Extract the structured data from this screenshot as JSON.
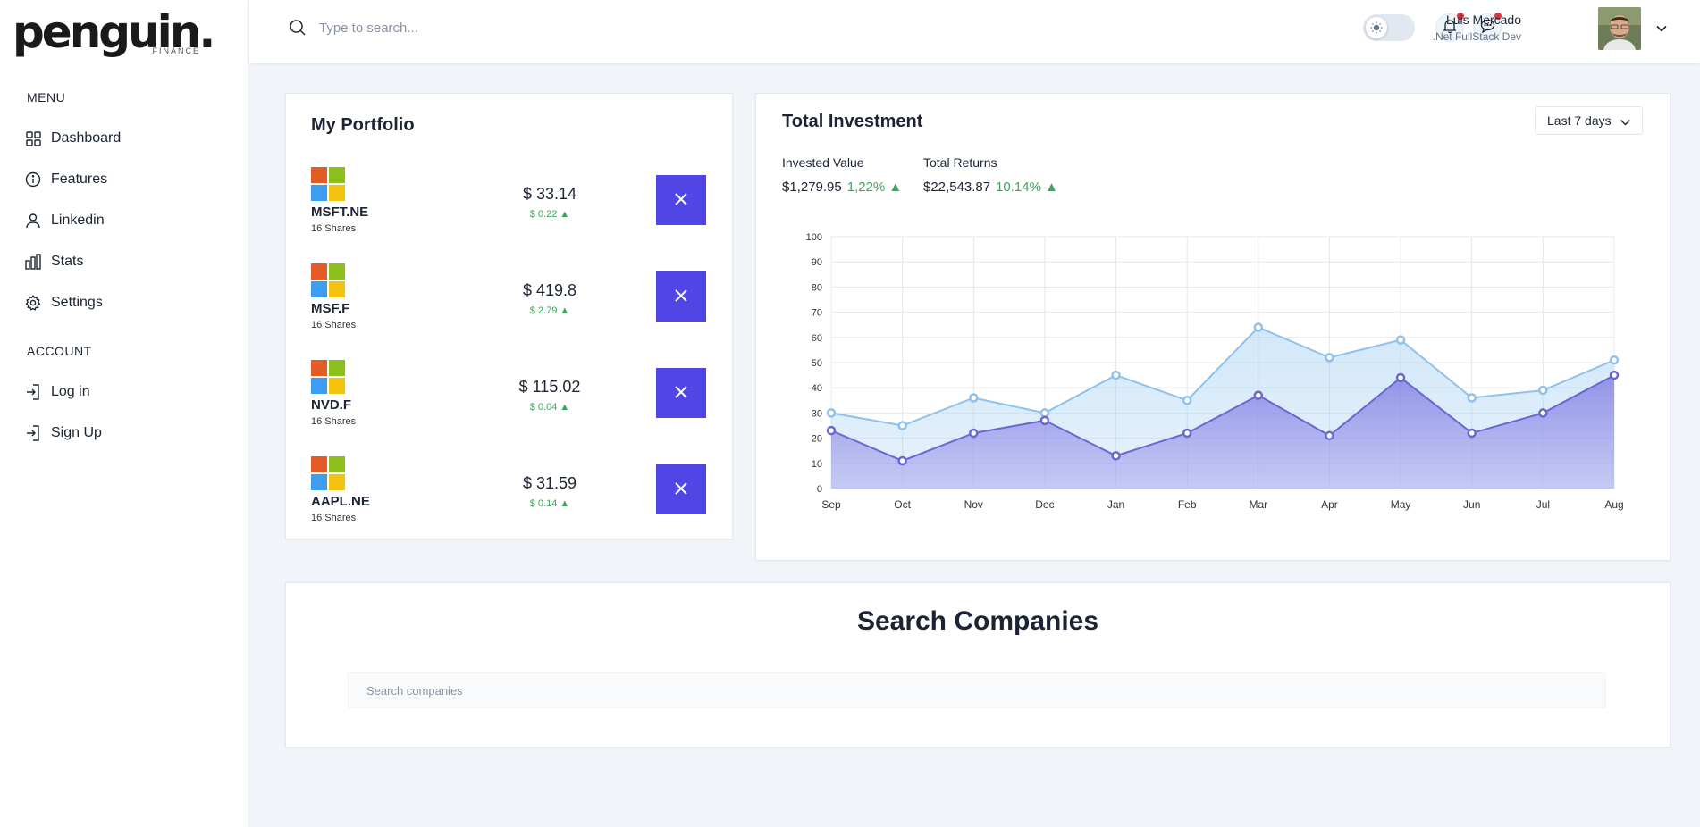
{
  "brand": {
    "name": "penguin.",
    "sub": "FINANCE"
  },
  "sidebar": {
    "menu_heading": "MENU",
    "menu_items": [
      {
        "label": "Dashboard",
        "icon": "grid-icon"
      },
      {
        "label": "Features",
        "icon": "info-icon"
      },
      {
        "label": "Linkedin",
        "icon": "user-icon"
      },
      {
        "label": "Stats",
        "icon": "bar-chart-icon"
      },
      {
        "label": "Settings",
        "icon": "gear-icon"
      }
    ],
    "account_heading": "ACCOUNT",
    "account_items": [
      {
        "label": "Log in",
        "icon": "login-icon"
      },
      {
        "label": "Sign Up",
        "icon": "signup-icon"
      }
    ]
  },
  "header": {
    "search_placeholder": "Type to search...",
    "user_name": "Luis Mercado",
    "user_role": ".Net FullStack Dev"
  },
  "portfolio": {
    "title": "My Portfolio",
    "stocks": [
      {
        "symbol": "MSFT.NE",
        "shares": "16 Shares",
        "price": "$ 33.14",
        "change": "$ 0.22 ▲"
      },
      {
        "symbol": "MSF.F",
        "shares": "16 Shares",
        "price": "$ 419.8",
        "change": "$ 2.79 ▲"
      },
      {
        "symbol": "NVD.F",
        "shares": "16 Shares",
        "price": "$ 115.02",
        "change": "$ 0.04 ▲"
      },
      {
        "symbol": "AAPL.NE",
        "shares": "16 Shares",
        "price": "$ 31.59",
        "change": "$ 0.14 ▲"
      }
    ]
  },
  "investment": {
    "title": "Total Investment",
    "range": "Last 7 days",
    "invested_label": "Invested Value",
    "invested_value": "$1,279.95",
    "invested_pct": "1,22% ▲",
    "returns_label": "Total Returns",
    "returns_value": "$22,543.87",
    "returns_pct": "10.14% ▲"
  },
  "chart_data": {
    "type": "area",
    "categories": [
      "Sep",
      "Oct",
      "Nov",
      "Dec",
      "Jan",
      "Feb",
      "Mar",
      "Apr",
      "May",
      "Jun",
      "Jul",
      "Aug"
    ],
    "series": [
      {
        "values": [
          30,
          25,
          36,
          30,
          45,
          35,
          64,
          52,
          59,
          36,
          39,
          51
        ],
        "color": "#8fc1ec"
      },
      {
        "values": [
          23,
          11,
          22,
          27,
          13,
          22,
          37,
          21,
          44,
          22,
          30,
          45
        ],
        "color": "#6b66d4"
      }
    ],
    "ylim": [
      0,
      100
    ],
    "yticks": [
      0,
      10,
      20,
      30,
      40,
      50,
      60,
      70,
      80,
      90,
      100
    ],
    "grid": true,
    "title": "",
    "xlabel": "",
    "ylabel": ""
  },
  "search_companies": {
    "title": "Search Companies",
    "placeholder": "Search companies"
  },
  "colors": {
    "accent": "#4f46e5",
    "positive": "#3ca55c",
    "background": "#f1f5f9"
  }
}
